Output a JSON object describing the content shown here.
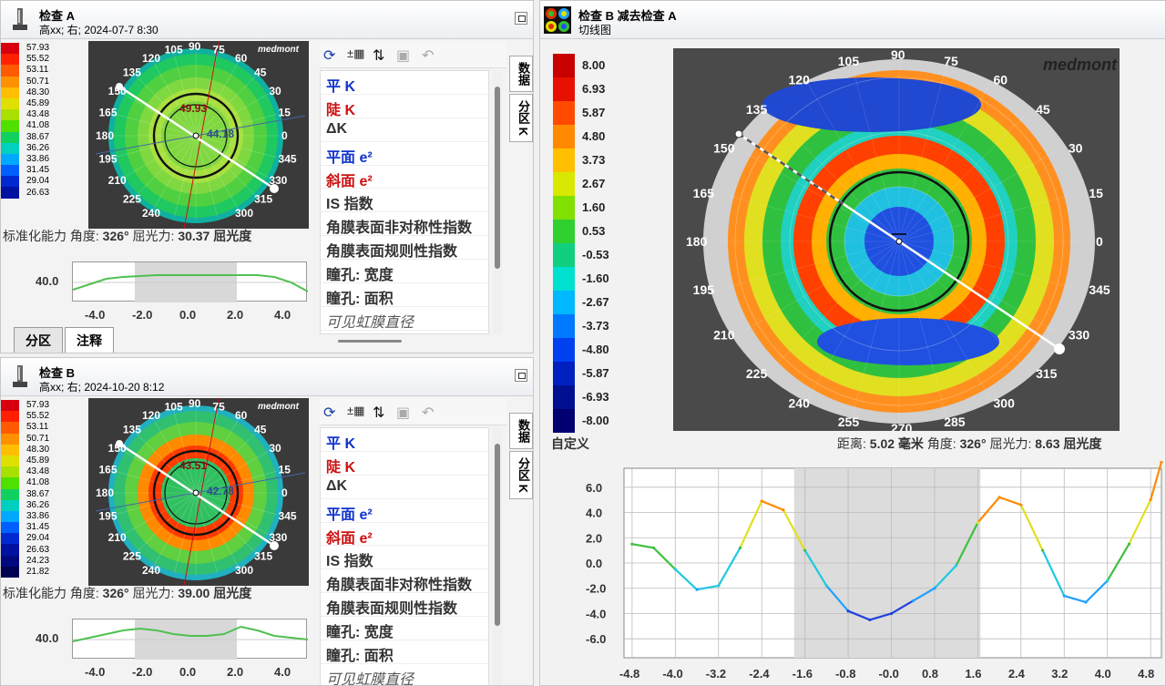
{
  "exam_a": {
    "title": "检查 A",
    "subtitle": "高xx; 右; 2024-07-7 8:30",
    "legend": [
      "57.93",
      "55.52",
      "53.11",
      "50.71",
      "48.30",
      "45.89",
      "43.48",
      "41.08",
      "38.67",
      "36.26",
      "33.86",
      "31.45",
      "29.04",
      "26.63"
    ],
    "legend_colors": [
      "#d8000f",
      "#ff2000",
      "#ff5a00",
      "#ff9000",
      "#ffbf00",
      "#e0e000",
      "#a8e000",
      "#50e000",
      "#10d060",
      "#00d0c0",
      "#00a8ff",
      "#0060ff",
      "#0028d0",
      "#0010a0"
    ],
    "angle_labels": [
      "105",
      "90",
      "75",
      "60",
      "45",
      "30",
      "15",
      "0",
      "345",
      "330",
      "315",
      "300",
      "240",
      "225",
      "210",
      "195",
      "180",
      "165",
      "150",
      "135",
      "120"
    ],
    "k_steep": "49.93",
    "k_flat": "44.18",
    "caption": "标准化能力",
    "angle_label": "角度:",
    "angle_value": "326°",
    "power_label": "屈光力:",
    "power_value": "30.37 屈光度",
    "chart_value": "40.0",
    "x_ticks": [
      "-4.0",
      "-2.0",
      "0.0",
      "2.0",
      "4.0"
    ],
    "tabs": [
      "分区",
      "注释"
    ]
  },
  "exam_b": {
    "title": "检查 B",
    "subtitle": "高xx; 右; 2024-10-20 8:12",
    "legend": [
      "57.93",
      "55.52",
      "53.11",
      "50.71",
      "48.30",
      "45.89",
      "43.48",
      "41.08",
      "38.67",
      "36.26",
      "33.86",
      "31.45",
      "29.04",
      "26.63",
      "24.23",
      "21.82"
    ],
    "k_steep": "43.51",
    "k_flat": "42.78",
    "caption": "标准化能力",
    "angle_label": "角度:",
    "angle_value": "326°",
    "power_label": "屈光力:",
    "power_value": "39.00 屈光度",
    "chart_value": "40.0",
    "x_ticks": [
      "-4.0",
      "-2.0",
      "0.0",
      "2.0",
      "4.0"
    ]
  },
  "index_list": {
    "items": [
      {
        "t": "平 K",
        "c": "blue"
      },
      {
        "t": "陡 K",
        "c": "red"
      },
      {
        "t": "ΔK",
        "c": ""
      },
      {
        "t": "平面 e²",
        "c": "blue"
      },
      {
        "t": "斜面 e²",
        "c": "red"
      },
      {
        "t": "IS 指数",
        "c": ""
      },
      {
        "t": "角膜表面非对称性指数",
        "c": ""
      },
      {
        "t": "角膜表面规则性指数",
        "c": ""
      },
      {
        "t": "瞳孔: 宽度",
        "c": ""
      },
      {
        "t": "瞳孔: 面积",
        "c": ""
      },
      {
        "t": "可见虹膜直径",
        "c": "it"
      }
    ],
    "vtabs": [
      "数据",
      "分区 K"
    ]
  },
  "diff": {
    "title": "检查 B 减去检查 A",
    "subtitle": "切线图",
    "brand": "medmont",
    "legend": [
      "8.00",
      "6.93",
      "5.87",
      "4.80",
      "3.73",
      "2.67",
      "1.60",
      "0.53",
      "-0.53",
      "-1.60",
      "-2.67",
      "-3.73",
      "-4.80",
      "-5.87",
      "-6.93",
      "-8.00"
    ],
    "legend_colors": [
      "#c80000",
      "#e81000",
      "#ff4a00",
      "#ff8a00",
      "#ffc000",
      "#d8e800",
      "#80e000",
      "#30d030",
      "#10d080",
      "#00e0d0",
      "#00b8ff",
      "#0078ff",
      "#0040f0",
      "#0020c0",
      "#001090",
      "#000070"
    ],
    "legend_footer": "自定义",
    "angle_labels": [
      "105",
      "90",
      "75",
      "60",
      "45",
      "30",
      "15",
      "0",
      "345",
      "330",
      "315",
      "300",
      "285",
      "270",
      "255",
      "240",
      "225",
      "210",
      "195",
      "180",
      "165",
      "150",
      "135",
      "120"
    ],
    "distance_label": "距离:",
    "distance_value": "5.02 毫米",
    "angle_label": "角度:",
    "angle_value": "326°",
    "power_label": "屈光力:",
    "power_value": "8.63 屈光度"
  },
  "chart_data": {
    "type": "line",
    "x": [
      -4.8,
      -4.4,
      -4.0,
      -3.6,
      -3.2,
      -2.8,
      -2.4,
      -2.0,
      -1.6,
      -1.2,
      -0.8,
      -0.4,
      0.0,
      0.4,
      0.8,
      1.2,
      1.6,
      2.0,
      2.4,
      2.8,
      3.2,
      3.6,
      4.0,
      4.4,
      4.8,
      5.0
    ],
    "y": [
      1.5,
      1.2,
      -0.5,
      -2.1,
      -1.8,
      1.2,
      4.9,
      4.2,
      1.0,
      -1.8,
      -3.8,
      -4.5,
      -4.0,
      -3.0,
      -2.0,
      -0.2,
      3.2,
      5.2,
      4.6,
      1.0,
      -2.6,
      -3.1,
      -1.4,
      1.5,
      5.0,
      8.0
    ],
    "x_ticks": [
      "-4.8",
      "-4.0",
      "-3.2",
      "-2.4",
      "-1.6",
      "-0.8",
      "-0.0",
      "0.8",
      "1.6",
      "2.4",
      "3.2",
      "4.0",
      "4.8"
    ],
    "y_ticks": [
      "6.0",
      "4.0",
      "2.0",
      "0.0",
      "-2.0",
      "-4.0",
      "-6.0"
    ],
    "ylim": [
      -7.5,
      7.5
    ],
    "xlim": [
      -4.95,
      5.0
    ],
    "shaded": [
      -1.8,
      1.65
    ]
  }
}
